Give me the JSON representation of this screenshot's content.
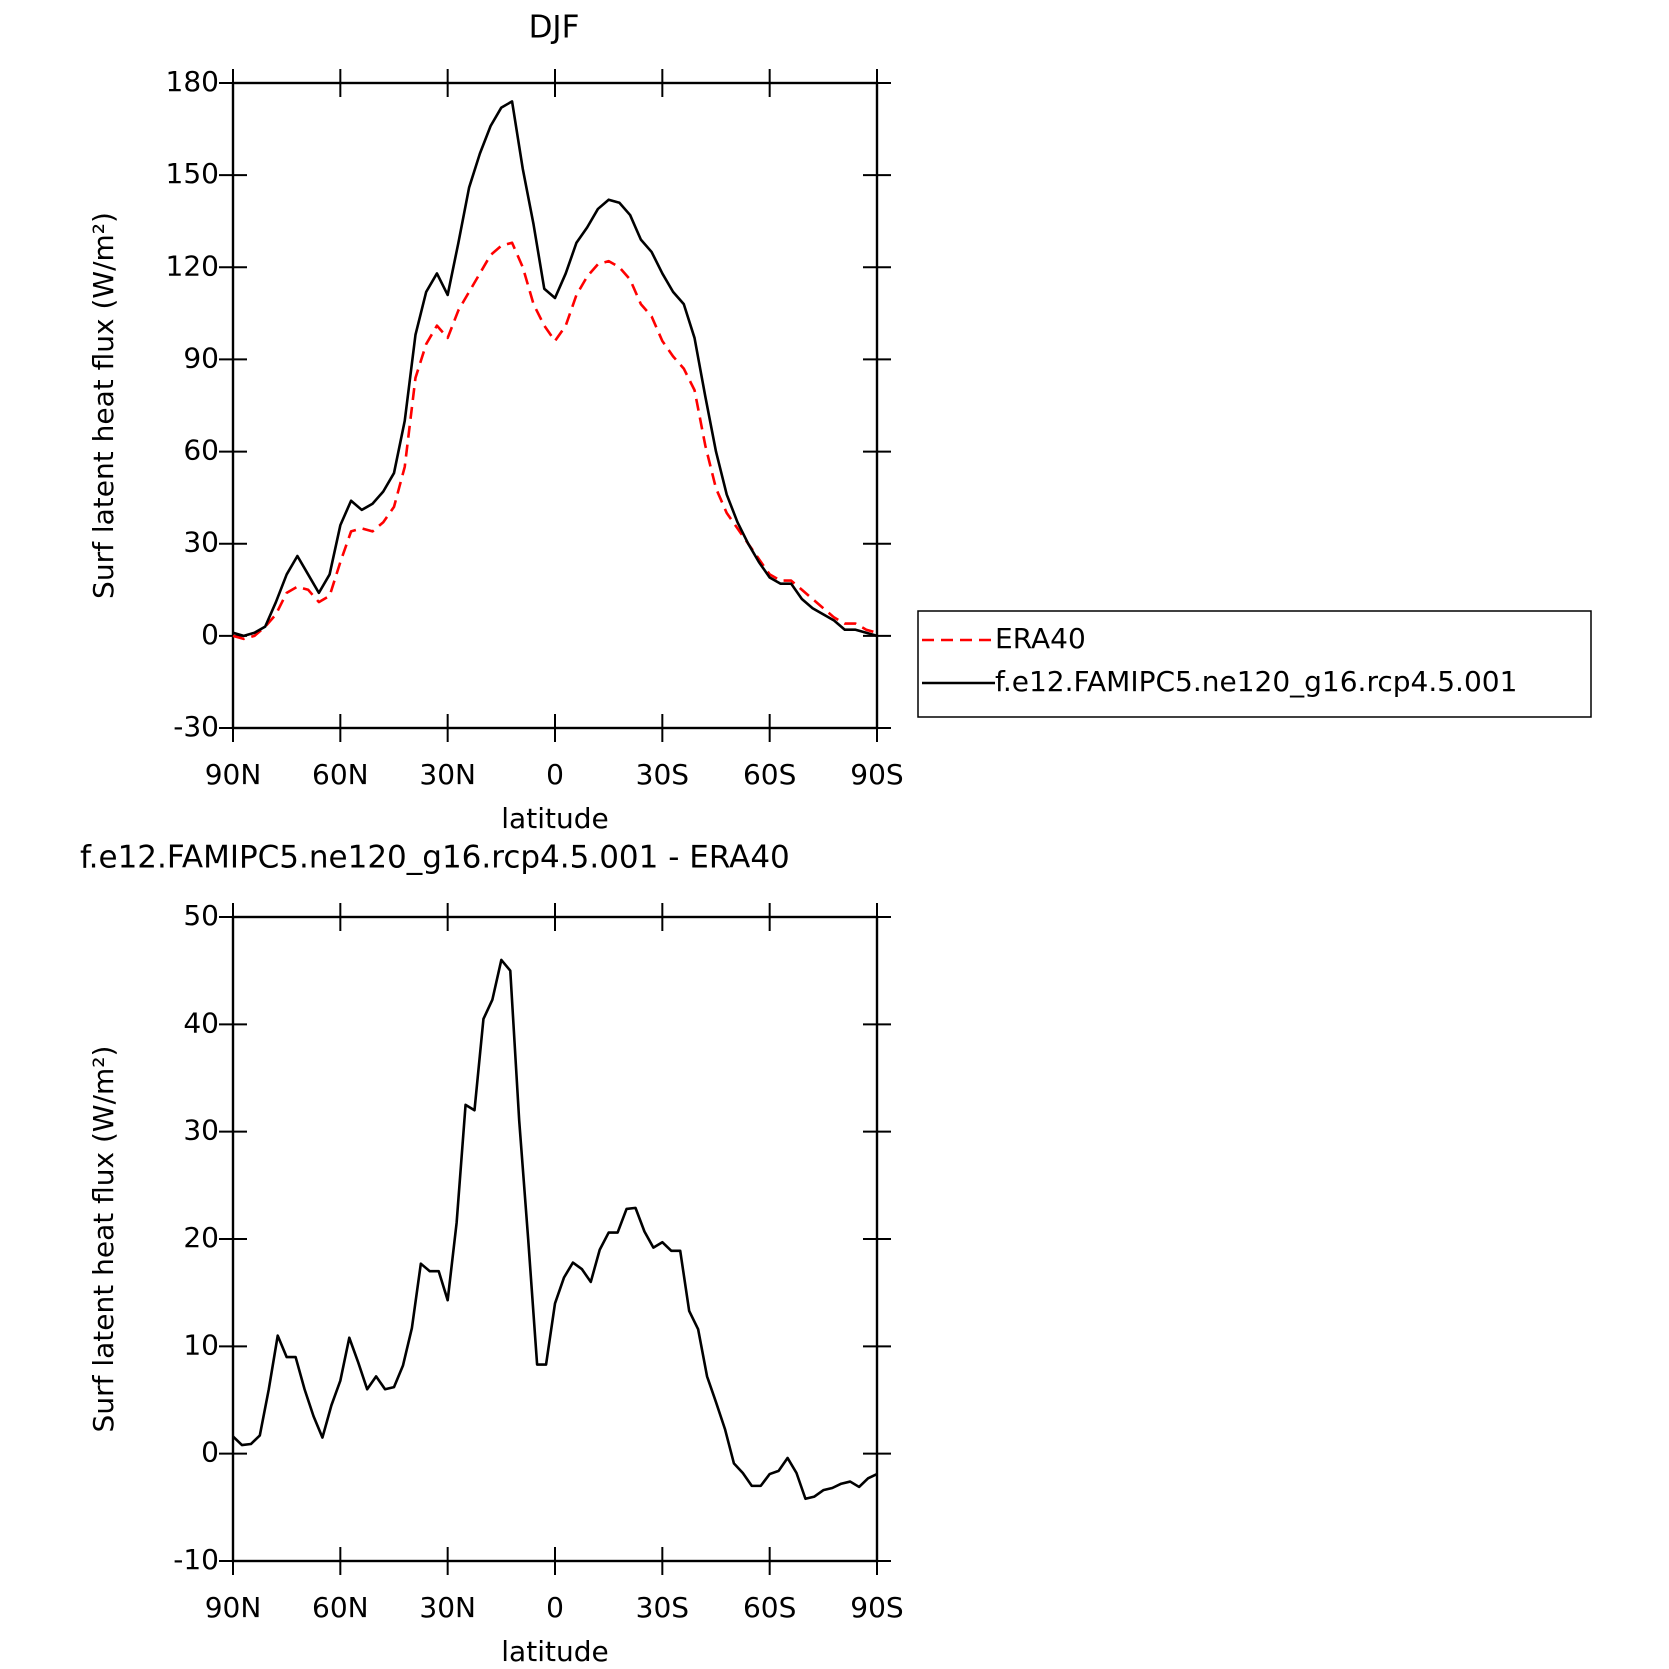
{
  "chart_data": [
    {
      "type": "line",
      "title": "DJF",
      "xlabel": "latitude",
      "ylabel": "Surf latent heat flux (W/m²)",
      "x": [
        90,
        87,
        84,
        81,
        78,
        75,
        72,
        69,
        66,
        63,
        60,
        57,
        54,
        51,
        48,
        45,
        42,
        39,
        36,
        33,
        30,
        27,
        24,
        21,
        18,
        15,
        12,
        9,
        6,
        3,
        0,
        -3,
        -6,
        -9,
        -12,
        -15,
        -18,
        -21,
        -24,
        -27,
        -30,
        -33,
        -36,
        -39,
        -42,
        -45,
        -48,
        -51,
        -54,
        -57,
        -60,
        -63,
        -66,
        -69,
        -72,
        -75,
        -78,
        -81,
        -84,
        -87,
        -90
      ],
      "series": [
        {
          "name": "ERA40",
          "color": "#ff0000",
          "style": "dashed",
          "values": [
            0,
            -1,
            0,
            3,
            7,
            14,
            16,
            15,
            11,
            13,
            24,
            34,
            35,
            34,
            37,
            42,
            55,
            84,
            95,
            101,
            97,
            106,
            112,
            118,
            124,
            127,
            128,
            120,
            108,
            101,
            96,
            101,
            111,
            117,
            121,
            122,
            120,
            116,
            108,
            104,
            96,
            91,
            87,
            80,
            62,
            48,
            40,
            35,
            30,
            25,
            20,
            18,
            18,
            15,
            12,
            9,
            6,
            4,
            4,
            2,
            1
          ]
        },
        {
          "name": "f.e12.FAMIPC5.ne120_g16.rcp4.5.001",
          "color": "#000000",
          "style": "solid",
          "values": [
            1,
            0,
            1,
            3,
            11,
            20,
            26,
            20,
            14,
            20,
            36,
            44,
            41,
            43,
            47,
            53,
            70,
            98,
            112,
            118,
            111,
            128,
            146,
            157,
            166,
            172,
            174,
            152,
            134,
            113,
            110,
            118,
            128,
            133,
            139,
            142,
            141,
            137,
            129,
            125,
            118,
            112,
            108,
            97,
            78,
            60,
            46,
            37,
            30,
            24,
            19,
            17,
            17,
            12,
            9,
            7,
            5,
            2,
            2,
            1,
            0
          ]
        }
      ],
      "xlim": [
        90,
        -90
      ],
      "xticks": [
        {
          "value": 90,
          "label": "90N"
        },
        {
          "value": 60,
          "label": "60N"
        },
        {
          "value": 30,
          "label": "30N"
        },
        0,
        {
          "value": -30,
          "label": "30S"
        },
        {
          "value": -60,
          "label": "60S"
        },
        {
          "value": -90,
          "label": "90S"
        }
      ],
      "ylim": [
        -30,
        180
      ],
      "yticks": [
        -30,
        0,
        30,
        60,
        90,
        120,
        150,
        180
      ]
    },
    {
      "type": "line",
      "title": "f.e12.FAMIPC5.ne120_g16.rcp4.5.001 - ERA40",
      "xlabel": "latitude",
      "ylabel": "Surf latent heat flux (W/m²)",
      "x": [
        90,
        87.5,
        85,
        82.5,
        80,
        77.5,
        75,
        72.5,
        70,
        67.5,
        65,
        62.5,
        60,
        57.5,
        55,
        52.5,
        50,
        47.5,
        45,
        42.5,
        40,
        37.5,
        35,
        32.5,
        30,
        27.5,
        25,
        22.5,
        20,
        17.5,
        15,
        12.5,
        10,
        7.5,
        5,
        2.5,
        0,
        -2.5,
        -5,
        -7.5,
        -10,
        -12.5,
        -15,
        -17.5,
        -20,
        -22.5,
        -25,
        -27.5,
        -30,
        -32.5,
        -35,
        -37.5,
        -40,
        -42.5,
        -45,
        -47.5,
        -50,
        -52.5,
        -55,
        -57.5,
        -60,
        -62.5,
        -65,
        -67.5,
        -70,
        -72.5,
        -75,
        -77.5,
        -80,
        -82.5,
        -85,
        -87.5,
        -90
      ],
      "series": [
        {
          "color": "#000000",
          "values": [
            1.6,
            0.8,
            0.9,
            1.7,
            6,
            11,
            9,
            9,
            6,
            3.5,
            1.5,
            4.5,
            6.8,
            10.8,
            8.5,
            6,
            7.2,
            6,
            6.2,
            8.2,
            11.7,
            17.7,
            17,
            17,
            14.3,
            21.5,
            32.5,
            32,
            40.5,
            42.3,
            46,
            45,
            31,
            20,
            8.3,
            8.3,
            14,
            16.4,
            17.8,
            17.2,
            16,
            19,
            20.6,
            20.6,
            22.8,
            22.9,
            20.7,
            19.2,
            19.7,
            18.9,
            18.9,
            13.3,
            11.6,
            7.2,
            4.8,
            2.3,
            -0.9,
            -1.8,
            -3,
            -3,
            -1.9,
            -1.6,
            -0.4,
            -1.8,
            -4.2,
            -4,
            -3.4,
            -3.2,
            -2.8,
            -2.6,
            -3.1,
            -2.3,
            -1.9
          ]
        }
      ],
      "xlim": [
        90,
        -90
      ],
      "xticks": [
        {
          "value": 90,
          "label": "90N"
        },
        {
          "value": 60,
          "label": "60N"
        },
        {
          "value": 30,
          "label": "30N"
        },
        0,
        {
          "value": -30,
          "label": "30S"
        },
        {
          "value": -60,
          "label": "60S"
        },
        {
          "value": -90,
          "label": "90S"
        }
      ],
      "ylim": [
        -10,
        50
      ],
      "yticks": [
        -10,
        0,
        10,
        20,
        30,
        40,
        50
      ]
    }
  ]
}
